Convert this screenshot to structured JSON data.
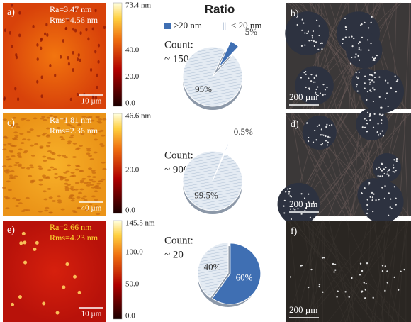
{
  "title": "Ratio",
  "legend": [
    {
      "label": "≥20 nm",
      "color": "#3f6fb3"
    },
    {
      "label": "< 20 nm",
      "color": "#dfe7f1"
    }
  ],
  "legend_stripe": "||",
  "rows": [
    {
      "afm": {
        "label": "a)",
        "ra": "Ra=3.47 nm",
        "rms": "Rms=4.56 nm",
        "scale": "10 µm",
        "colorbar": [
          "73.4 nm",
          "40.0",
          "20.0",
          "0.0"
        ]
      },
      "pie": {
        "count_label": "Count:",
        "count": "~ 150",
        "values": [
          5,
          95
        ],
        "value_labels": [
          "5%",
          "95%"
        ]
      },
      "micrograph": {
        "label": "b)",
        "scale": "200 µm"
      }
    },
    {
      "afm": {
        "label": "c)",
        "ra": "Ra=1.81 nm",
        "rms": "Rms=2.36 nm",
        "scale": "40 µm",
        "colorbar": [
          "46.6 nm",
          "20.0",
          "0.0"
        ]
      },
      "pie": {
        "count_label": "Count:",
        "count": "~ 900",
        "values": [
          0.5,
          99.5
        ],
        "value_labels": [
          "0.5%",
          "99.5%"
        ]
      },
      "micrograph": {
        "label": "d)",
        "scale": "200 µm"
      }
    },
    {
      "afm": {
        "label": "e)",
        "ra": "Ra=2.66 nm",
        "rms": "Rms=4.23 nm",
        "scale": "10 µm",
        "colorbar": [
          "145.5 nm",
          "100.0",
          "50.0",
          "0.0"
        ]
      },
      "pie": {
        "count_label": "Count:",
        "count": "~ 20",
        "values": [
          60,
          40
        ],
        "value_labels": [
          "60%",
          "40%"
        ]
      },
      "micrograph": {
        "label": "f)",
        "scale": "200 µm"
      }
    }
  ]
}
